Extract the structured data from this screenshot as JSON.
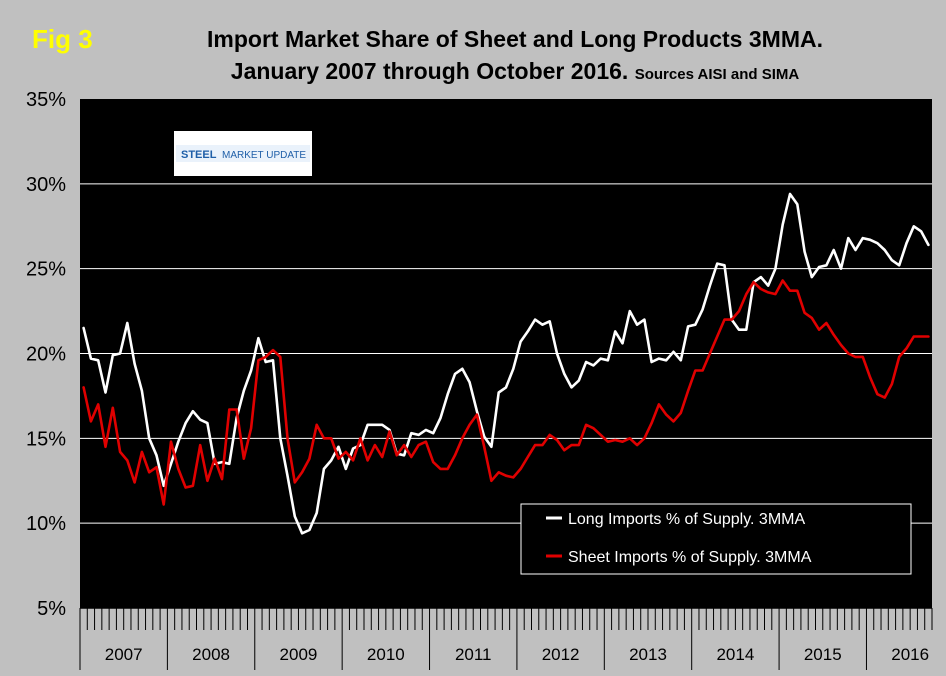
{
  "fig_label": "Fig 3",
  "title_line1": "Import Market Share of Sheet and Long Products 3MMA.",
  "title_line2": "January 2007 through October 2016.",
  "title_source": "Sources AISI and SIMA",
  "logo": {
    "text_a": "STEEL",
    "text_b": "MARKET UPDATE"
  },
  "colors": {
    "background": "#c0c0c0",
    "plot": "#000000",
    "long": "#ffffff",
    "sheet": "#e00000"
  },
  "chart_data": {
    "type": "line",
    "title": "Import Market Share of Sheet and Long Products 3MMA. January 2007 through October 2016.",
    "xlabel": "",
    "ylabel": "",
    "ylim": [
      5,
      35
    ],
    "y_ticks": [
      "5%",
      "10%",
      "15%",
      "20%",
      "25%",
      "30%",
      "35%"
    ],
    "y_tick_values": [
      5,
      10,
      15,
      20,
      25,
      30,
      35
    ],
    "year_labels": [
      "2007",
      "2008",
      "2009",
      "2010",
      "2011",
      "2012",
      "2013",
      "2014",
      "2015",
      "2016"
    ],
    "x_start": "2007-01",
    "x_end": "2016-10",
    "grid": true,
    "legend_position": "lower-right",
    "series": [
      {
        "name": "Long Imports % of Supply. 3MMA",
        "color": "#ffffff",
        "values": [
          21.5,
          19.7,
          19.6,
          17.7,
          19.9,
          20.0,
          21.8,
          19.4,
          17.8,
          15.0,
          14.0,
          12.2,
          13.5,
          14.8,
          15.9,
          16.6,
          16.1,
          15.9,
          13.5,
          13.6,
          13.5,
          16.2,
          17.8,
          19.0,
          20.9,
          19.5,
          19.6,
          15.0,
          12.8,
          10.4,
          9.4,
          9.6,
          10.6,
          13.2,
          13.7,
          14.5,
          13.2,
          14.4,
          14.6,
          15.8,
          15.8,
          15.8,
          15.5,
          14.1,
          14.0,
          15.3,
          15.2,
          15.5,
          15.3,
          16.2,
          17.6,
          18.8,
          19.1,
          18.3,
          16.6,
          15.1,
          14.5,
          17.7,
          18.0,
          19.1,
          20.7,
          21.3,
          22.0,
          21.7,
          21.9,
          20.0,
          18.8,
          18.0,
          18.4,
          19.5,
          19.3,
          19.7,
          19.6,
          21.3,
          20.6,
          22.5,
          21.7,
          22.0,
          19.5,
          19.7,
          19.6,
          20.1,
          19.6,
          21.6,
          21.7,
          22.6,
          24.0,
          25.3,
          25.2,
          22.0,
          21.4,
          21.4,
          24.2,
          24.5,
          24.0,
          25.0,
          27.6,
          29.4,
          28.8,
          26.0,
          24.5,
          25.1,
          25.2,
          26.1,
          25.0,
          26.8,
          26.1,
          26.8,
          26.7,
          26.5,
          26.1,
          25.5,
          25.2,
          26.5,
          27.5,
          27.2,
          26.4
        ]
      },
      {
        "name": "Sheet Imports % of Supply. 3MMA",
        "color": "#e00000",
        "values": [
          18.0,
          16.0,
          17.0,
          14.5,
          16.8,
          14.2,
          13.7,
          12.4,
          14.2,
          13.0,
          13.3,
          11.1,
          14.8,
          13.2,
          12.1,
          12.2,
          14.6,
          12.5,
          13.8,
          12.6,
          16.7,
          16.7,
          13.8,
          15.6,
          19.6,
          19.8,
          20.2,
          19.8,
          15.0,
          12.4,
          13.0,
          13.8,
          15.8,
          15.0,
          15.0,
          13.8,
          14.2,
          13.7,
          15.0,
          13.7,
          14.6,
          13.9,
          15.4,
          14.0,
          14.6,
          13.9,
          14.6,
          14.8,
          13.6,
          13.2,
          13.2,
          14.0,
          15.0,
          15.8,
          16.4,
          14.5,
          12.5,
          13.0,
          12.8,
          12.7,
          13.2,
          13.9,
          14.6,
          14.6,
          15.2,
          14.9,
          14.3,
          14.6,
          14.6,
          15.8,
          15.6,
          15.2,
          14.8,
          14.9,
          14.8,
          15.0,
          14.6,
          15.0,
          15.9,
          17.0,
          16.4,
          16.0,
          16.5,
          17.8,
          19.0,
          19.0,
          20.0,
          21.0,
          22.0,
          22.0,
          22.5,
          23.5,
          24.2,
          23.8,
          23.6,
          23.5,
          24.3,
          23.7,
          23.7,
          22.4,
          22.1,
          21.4,
          21.8,
          21.1,
          20.5,
          20.0,
          19.8,
          19.8,
          18.6,
          17.6,
          17.4,
          18.2,
          19.8,
          20.3,
          21.0,
          21.0,
          21.0
        ]
      }
    ]
  }
}
